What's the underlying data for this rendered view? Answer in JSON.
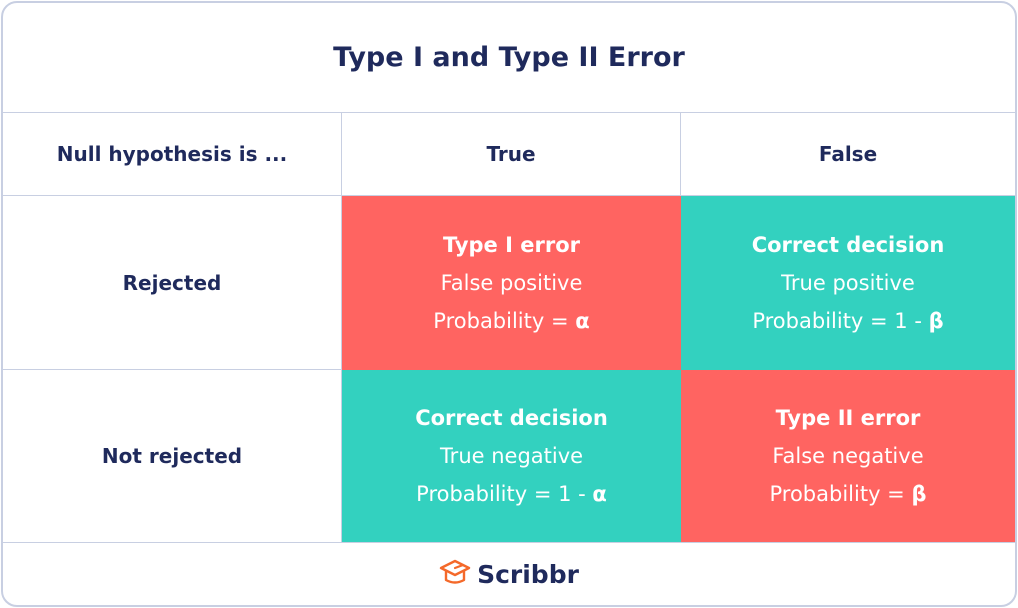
{
  "title": "Type I and Type II Error",
  "header": {
    "row_label": "Null hypothesis is ...",
    "col1": "True",
    "col2": "False"
  },
  "rows": [
    {
      "label": "Rejected",
      "cells": [
        {
          "title": "Type I error",
          "subtitle": "False positive",
          "prob_label": "Probability = ",
          "prob_value": "α",
          "color": "#ff6461"
        },
        {
          "title": "Correct decision",
          "subtitle": "True positive",
          "prob_label": "Probability = 1 - ",
          "prob_value": "β",
          "color": "#33d1bf"
        }
      ]
    },
    {
      "label": "Not rejected",
      "cells": [
        {
          "title": "Correct decision",
          "subtitle": "True negative",
          "prob_label": "Probability = 1 - ",
          "prob_value": "α",
          "color": "#33d1bf"
        },
        {
          "title": "Type II error",
          "subtitle": "False negative",
          "prob_label": "Probability = ",
          "prob_value": "β",
          "color": "#ff6461"
        }
      ]
    }
  ],
  "footer": {
    "logo": "Scribbr",
    "logo_icon": "graduation-cap-icon",
    "logo_color": "#f4692a"
  }
}
